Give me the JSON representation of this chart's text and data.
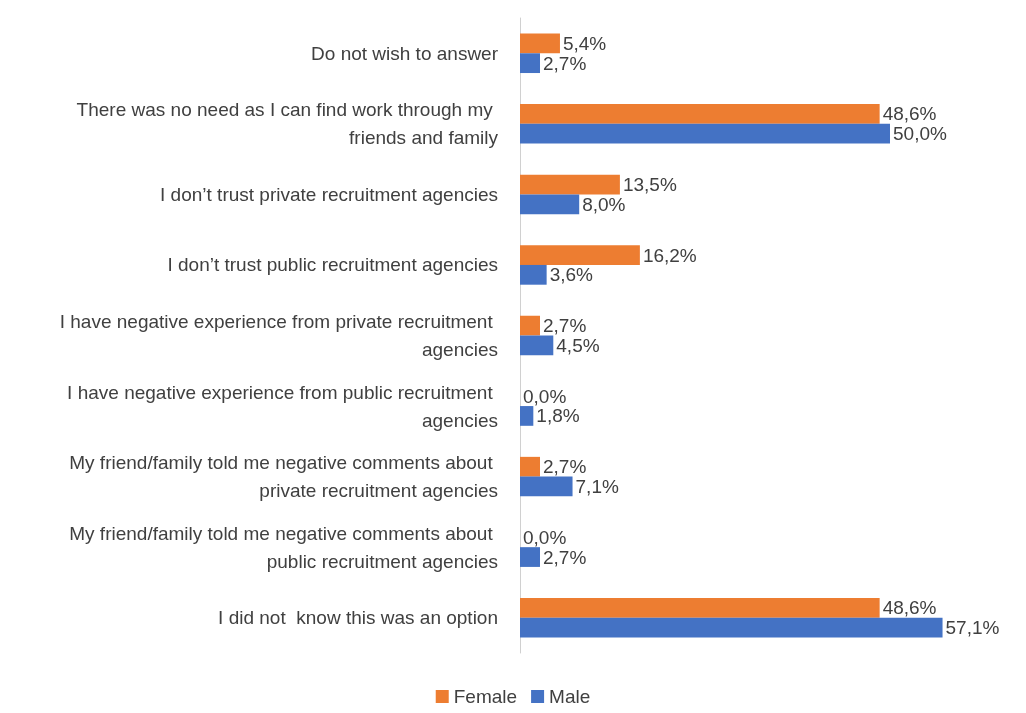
{
  "chart_data": {
    "type": "bar",
    "orientation": "horizontal",
    "categories": [
      "Do not wish to answer",
      "There was no need as I can find work through my friends and family",
      "I don’t trust private recruitment agencies",
      "I don’t trust public recruitment agencies",
      "I have negative experience from private recruitment agencies",
      "I have negative experience from public recruitment agencies",
      "My friend/family told me negative comments about private recruitment agencies",
      "My friend/family told me negative comments about public recruitment agencies",
      "I did not  know this was an option"
    ],
    "series": [
      {
        "name": "Female",
        "color": "#ed7d31",
        "values": [
          5.4,
          48.6,
          13.5,
          16.2,
          2.7,
          0.0,
          2.7,
          0.0,
          48.6
        ],
        "value_labels": [
          "5,4%",
          "48,6%",
          "13,5%",
          "16,2%",
          "2,7%",
          "0,0%",
          "2,7%",
          "0,0%",
          "48,6%"
        ]
      },
      {
        "name": "Male",
        "color": "#4472c4",
        "values": [
          2.7,
          50.0,
          8.0,
          3.6,
          4.5,
          1.8,
          7.1,
          2.7,
          57.1
        ],
        "value_labels": [
          "2,7%",
          "50,0%",
          "8,0%",
          "3,6%",
          "4,5%",
          "1,8%",
          "7,1%",
          "2,7%",
          "57,1%"
        ]
      }
    ],
    "legend": "bottom"
  }
}
